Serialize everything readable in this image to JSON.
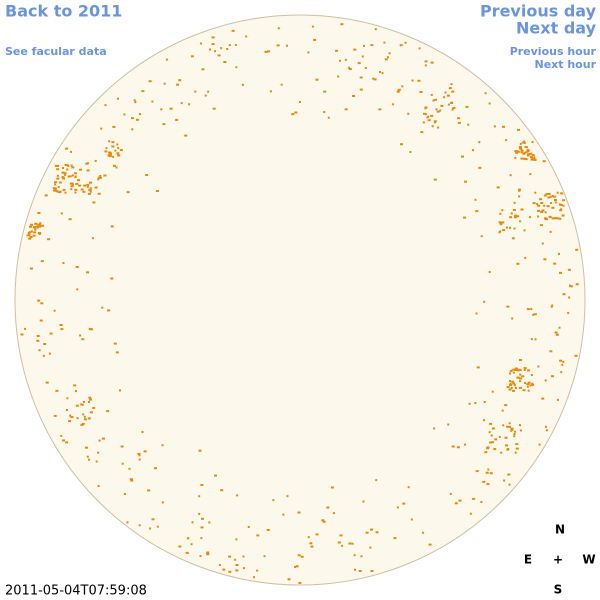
{
  "navigation": {
    "back": "Back to 2011",
    "facular_data": "See facular data",
    "previous_day": "Previous day",
    "next_day": "Next day",
    "previous_hour": "Previous hour",
    "next_hour": "Next hour"
  },
  "timestamp": "2011-05-04T07:59:08",
  "compass": {
    "north": "N",
    "east": "E",
    "center": "+",
    "west": "W",
    "south": "S"
  }
}
